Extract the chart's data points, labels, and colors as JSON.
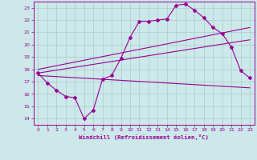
{
  "xlabel": "Windchill (Refroidissement éolien,°C)",
  "bg_color": "#cce8e8",
  "grid_color": "#aacccc",
  "line_color": "#990099",
  "xlim": [
    -0.5,
    23.5
  ],
  "ylim": [
    13.5,
    23.5
  ],
  "xticks": [
    0,
    1,
    2,
    3,
    4,
    5,
    6,
    7,
    8,
    9,
    10,
    11,
    12,
    13,
    14,
    15,
    16,
    17,
    18,
    19,
    20,
    21,
    22,
    23
  ],
  "yticks": [
    14,
    15,
    16,
    17,
    18,
    19,
    20,
    21,
    22,
    23
  ],
  "line1_x": [
    0,
    1,
    2,
    3,
    4,
    5,
    6,
    7,
    8,
    9,
    10,
    11,
    12,
    13,
    14,
    15,
    16,
    17,
    18,
    19,
    20,
    21,
    22,
    23
  ],
  "line1_y": [
    17.7,
    16.9,
    16.3,
    15.8,
    15.7,
    14.0,
    14.7,
    17.2,
    17.5,
    18.9,
    20.6,
    21.9,
    21.9,
    22.0,
    22.1,
    23.2,
    23.3,
    22.8,
    22.2,
    21.4,
    20.9,
    19.8,
    17.9,
    17.3
  ],
  "line2_x": [
    0,
    23
  ],
  "line2_y": [
    17.5,
    16.5
  ],
  "line3_x": [
    0,
    23
  ],
  "line3_y": [
    17.7,
    20.4
  ],
  "line4_x": [
    0,
    23
  ],
  "line4_y": [
    18.0,
    21.4
  ]
}
